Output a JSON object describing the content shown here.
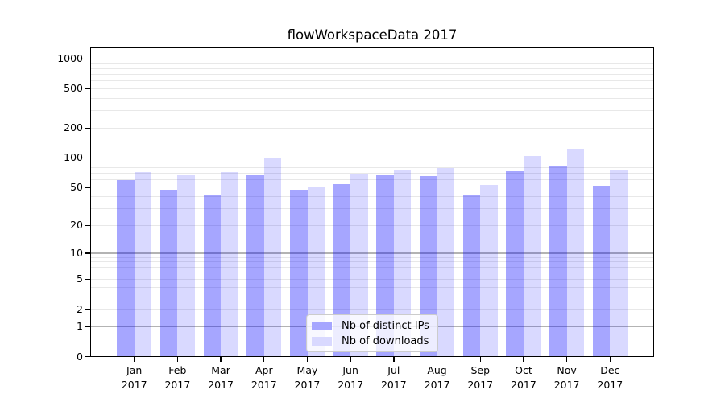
{
  "chart_data": {
    "type": "bar",
    "title": "flowWorkspaceData 2017",
    "categories": [
      "Jan",
      "Feb",
      "Mar",
      "Apr",
      "May",
      "Jun",
      "Jul",
      "Aug",
      "Sep",
      "Oct",
      "Nov",
      "Dec"
    ],
    "year_label": "2017",
    "series": [
      {
        "name": "Nb of distinct IPs",
        "values": [
          59,
          47,
          42,
          66,
          47,
          54,
          66,
          65,
          42,
          73,
          82,
          52
        ],
        "fill_base": "#0000ff",
        "fill_alpha": 0.35,
        "swatch": "#a6a6ff"
      },
      {
        "name": "Nb of downloads",
        "values": [
          72,
          66,
          71,
          100,
          51,
          68,
          76,
          78,
          53,
          105,
          124,
          76
        ],
        "fill_base": "#0000ff",
        "fill_alpha": 0.15,
        "swatch": "#d9d9ff"
      }
    ],
    "yscale": "log1p",
    "ylim": [
      0,
      1271
    ],
    "y_tick_labels": [
      0,
      1,
      2,
      5,
      10,
      20,
      50,
      100,
      200,
      500,
      1000
    ],
    "grid_major_values": [
      1,
      10,
      100,
      1000
    ],
    "grid_minor_values": [
      2,
      3,
      4,
      5,
      6,
      7,
      8,
      9,
      20,
      30,
      40,
      50,
      60,
      70,
      80,
      90,
      200,
      300,
      400,
      500,
      600,
      700,
      800,
      900
    ],
    "grid": "horizontal major+minor",
    "legend_position": "lower center",
    "colors": {
      "grid_major": "#b3b3b3",
      "grid_minor": "#e8e8e8",
      "axis": "#000000",
      "text": "#000000",
      "background": "#ffffff"
    }
  }
}
